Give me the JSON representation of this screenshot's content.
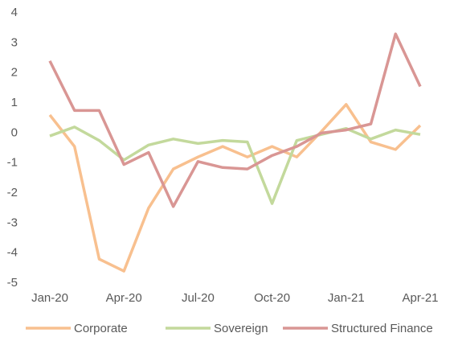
{
  "chart_data": {
    "type": "line",
    "categories": [
      "Jan-20",
      null,
      null,
      "Apr-20",
      null,
      null,
      "Jul-20",
      null,
      null,
      "Oct-20",
      null,
      null,
      "Jan-21",
      null,
      null,
      "Apr-21"
    ],
    "series": [
      {
        "name": "Corporate",
        "color": "#f8c08f",
        "values": [
          0.6,
          -0.45,
          -4.2,
          -4.6,
          -2.5,
          -1.2,
          -0.8,
          -0.45,
          -0.8,
          -0.45,
          -0.8,
          0.05,
          0.95,
          -0.3,
          -0.55,
          0.25
        ]
      },
      {
        "name": "Sovereign",
        "color": "#c3d99c",
        "values": [
          -0.1,
          0.2,
          -0.25,
          -0.9,
          -0.4,
          -0.2,
          -0.35,
          -0.25,
          -0.3,
          -2.35,
          -0.25,
          -0.05,
          0.15,
          -0.2,
          0.1,
          -0.05
        ]
      },
      {
        "name": "Structured Finance",
        "color": "#d99694",
        "values": [
          2.4,
          0.75,
          0.75,
          -1.05,
          -0.65,
          -2.45,
          -0.95,
          -1.15,
          -1.2,
          -0.75,
          -0.45,
          0,
          0.1,
          0.3,
          3.3,
          1.55
        ]
      }
    ],
    "ylim": [
      -5,
      4
    ],
    "yticks": [
      -5,
      -4,
      -3,
      -2,
      -1,
      0,
      1,
      2,
      3,
      4
    ],
    "grid": false,
    "legend": "bottom"
  }
}
